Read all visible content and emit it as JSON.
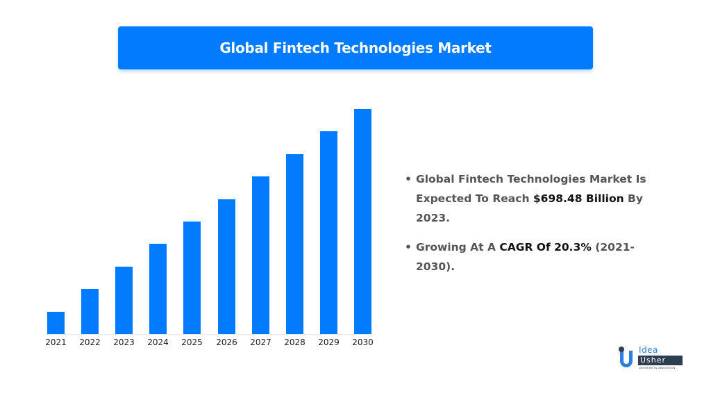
{
  "title": "Global Fintech Technologies Market",
  "chart_data": {
    "type": "bar",
    "title": "Global Fintech Technologies Market",
    "xlabel": "",
    "ylabel": "",
    "categories": [
      "2021",
      "2022",
      "2023",
      "2024",
      "2025",
      "2026",
      "2027",
      "2028",
      "2029",
      "2030"
    ],
    "values": [
      1,
      2,
      3,
      4,
      5,
      6,
      7,
      8,
      9,
      10
    ],
    "value_note": "Relative bar heights (unlabeled y-axis); evenly increasing",
    "ylim": [
      0,
      10
    ],
    "grid": false,
    "legend": null,
    "bar_color": "#037bff"
  },
  "bullets": [
    {
      "text_before": "Global Fintech Technologies Market Is Expected To Reach ",
      "highlight": "$698.48 Billion",
      "text_after": " By 2023."
    },
    {
      "text_before": "Growing At A ",
      "highlight": "CAGR Of 20.3%",
      "text_after": " (2021-2030)."
    }
  ],
  "logo": {
    "line1": "Idea",
    "line2": "Usher",
    "tagline": "USHERING IN INNOVATION"
  },
  "colors": {
    "accent": "#037bff",
    "text": "#555555",
    "highlight_text": "#111111",
    "logo_dark": "#2d3e50"
  }
}
